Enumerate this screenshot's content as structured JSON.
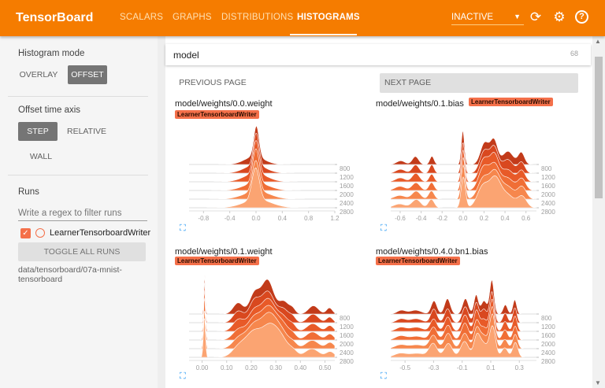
{
  "header": {
    "title": "TensorBoard",
    "tabs": [
      "SCALARS",
      "GRAPHS",
      "DISTRIBUTIONS",
      "HISTOGRAMS"
    ],
    "active_tab": "HISTOGRAMS",
    "run_status": "INACTIVE",
    "icons": [
      "refresh-icon",
      "gear-icon",
      "help-icon"
    ],
    "color": "#f57c00"
  },
  "sidebar": {
    "histogram_mode": {
      "label": "Histogram mode",
      "options": [
        "OVERLAY",
        "OFFSET"
      ],
      "selected": "OFFSET"
    },
    "offset_axis": {
      "label": "Offset time axis",
      "options": [
        "STEP",
        "RELATIVE",
        "WALL"
      ],
      "selected": "STEP"
    },
    "runs": {
      "label": "Runs",
      "filter_placeholder": "Write a regex to filter runs",
      "items": [
        {
          "name": "LearnerTensorboardWriter",
          "checked": true
        }
      ],
      "toggle_label": "TOGGLE ALL RUNS",
      "path": "data/tensorboard/07a-mnist-tensorboard"
    }
  },
  "main": {
    "search_value": "model",
    "count": "68",
    "prev_label": "PREVIOUS PAGE",
    "next_label": "NEXT PAGE"
  },
  "chart_data": [
    {
      "type": "area",
      "title": "model/weights/0.0.weight",
      "run": "LearnerTensorboardWriter",
      "mode": "offset",
      "xticks": [
        "-0.8",
        "-0.4",
        "0.0",
        "0.4",
        "0.8",
        "1.2"
      ],
      "xtick_values": [
        -0.8,
        -0.4,
        0,
        0.4,
        0.8,
        1.2
      ],
      "xlim": [
        -1.02,
        1.2
      ],
      "steps": [
        "800",
        "1200",
        "1600",
        "2000",
        "2400",
        "2800"
      ],
      "approx_peaks": [
        [
          0,
          0.04,
          1
        ],
        [
          0,
          0.15,
          0.25
        ]
      ]
    },
    {
      "type": "area",
      "title": "model/weights/0.1.bias",
      "run": "LearnerTensorboardWriter",
      "mode": "offset",
      "xticks": [
        "-0.6",
        "-0.4",
        "-0.2",
        "0.0",
        "0.2",
        "0.4",
        "0.6"
      ],
      "xtick_values": [
        -0.6,
        -0.4,
        -0.2,
        0,
        0.2,
        0.4,
        0.6
      ],
      "xlim": [
        -0.69,
        0.7
      ],
      "steps": [
        "800",
        "1200",
        "1600",
        "2000",
        "2400",
        "2800"
      ],
      "approx_peaks": [
        [
          -0.6,
          0.04,
          0.12
        ],
        [
          -0.45,
          0.03,
          0.25
        ],
        [
          -0.3,
          0.02,
          0.25
        ],
        [
          0,
          0.015,
          1
        ],
        [
          0.2,
          0.04,
          0.7
        ],
        [
          0.3,
          0.035,
          0.75
        ],
        [
          0.42,
          0.05,
          0.4
        ],
        [
          0.56,
          0.03,
          0.35
        ]
      ]
    },
    {
      "type": "area",
      "title": "model/weights/0.1.weight",
      "run": "LearnerTensorboardWriter",
      "mode": "offset",
      "xticks": [
        "0.00",
        "0.10",
        "0.20",
        "0.30",
        "0.40",
        "0.50"
      ],
      "xtick_values": [
        0,
        0.1,
        0.2,
        0.3,
        0.4,
        0.5
      ],
      "xlim": [
        -0.053,
        0.54
      ],
      "steps": [
        "800",
        "1200",
        "1600",
        "2000",
        "2400",
        "2800"
      ],
      "approx_peaks": [
        [
          0.01,
          0.003,
          1.3
        ],
        [
          0.15,
          0.02,
          0.35
        ],
        [
          0.21,
          0.02,
          0.6
        ],
        [
          0.27,
          0.025,
          1
        ],
        [
          0.33,
          0.02,
          0.4
        ],
        [
          0.37,
          0.012,
          0.15
        ],
        [
          0.45,
          0.02,
          0.25
        ],
        [
          0.52,
          0.012,
          0.18
        ]
      ]
    },
    {
      "type": "area",
      "title": "model/weights/0.4.0.bn1.bias",
      "run": "LearnerTensorboardWriter",
      "mode": "offset",
      "xticks": [
        "-0.5",
        "-0.3",
        "-0.1",
        "0.1",
        "0.3"
      ],
      "xtick_values": [
        -0.5,
        -0.3,
        -0.1,
        0.1,
        0.3
      ],
      "xlim": [
        -0.6,
        0.42
      ],
      "steps": [
        "800",
        "1200",
        "1600",
        "2000",
        "2400",
        "2800"
      ],
      "approx_peaks": [
        [
          -0.53,
          0.03,
          0.12
        ],
        [
          -0.42,
          0.04,
          0.12
        ],
        [
          -0.3,
          0.02,
          0.4
        ],
        [
          -0.2,
          0.02,
          0.45
        ],
        [
          -0.08,
          0.02,
          0.5
        ],
        [
          0,
          0.015,
          0.6
        ],
        [
          0.05,
          0.02,
          0.4
        ],
        [
          0.11,
          0.015,
          1
        ],
        [
          0.2,
          0.015,
          0.3
        ],
        [
          0.27,
          0.013,
          0.45
        ]
      ]
    }
  ]
}
